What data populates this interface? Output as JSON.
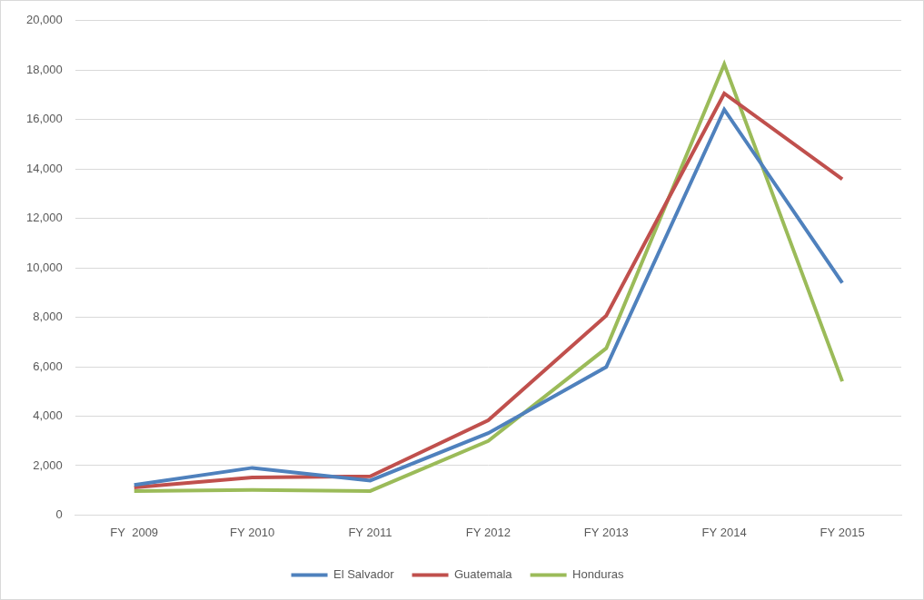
{
  "chart_data": {
    "type": "line",
    "categories": [
      "FY  2009",
      "FY 2010",
      "FY 2011",
      "FY 2012",
      "FY 2013",
      "FY 2014",
      "FY 2015"
    ],
    "series": [
      {
        "name": "El Salvador",
        "color": "#4f81bd",
        "values": [
          1221,
          1910,
          1394,
          3314,
          5990,
          16404,
          9389
        ]
      },
      {
        "name": "Guatemala",
        "color": "#c0504d",
        "values": [
          1115,
          1517,
          1565,
          3835,
          8068,
          17057,
          13589
        ]
      },
      {
        "name": "Honduras",
        "color": "#9bbb59",
        "values": [
          968,
          1017,
          974,
          2997,
          6747,
          18244,
          5409
        ]
      }
    ],
    "ylim": [
      0,
      20000
    ],
    "yticks": [
      0,
      {
        "value": 2000,
        "label": "2,000"
      },
      {
        "value": 4000,
        "label": "4,000"
      },
      {
        "value": 6000,
        "label": "6,000"
      },
      {
        "value": 8000,
        "label": "8,000"
      },
      {
        "value": 10000,
        "label": "10,000"
      },
      {
        "value": 12000,
        "label": "12,000"
      },
      {
        "value": 14000,
        "label": "14,000"
      },
      {
        "value": 16000,
        "label": "16,000"
      },
      {
        "value": 18000,
        "label": "18,000"
      },
      {
        "value": 20000,
        "label": "20,000"
      }
    ],
    "grid": true,
    "legend": "bottom",
    "marker": "none"
  }
}
